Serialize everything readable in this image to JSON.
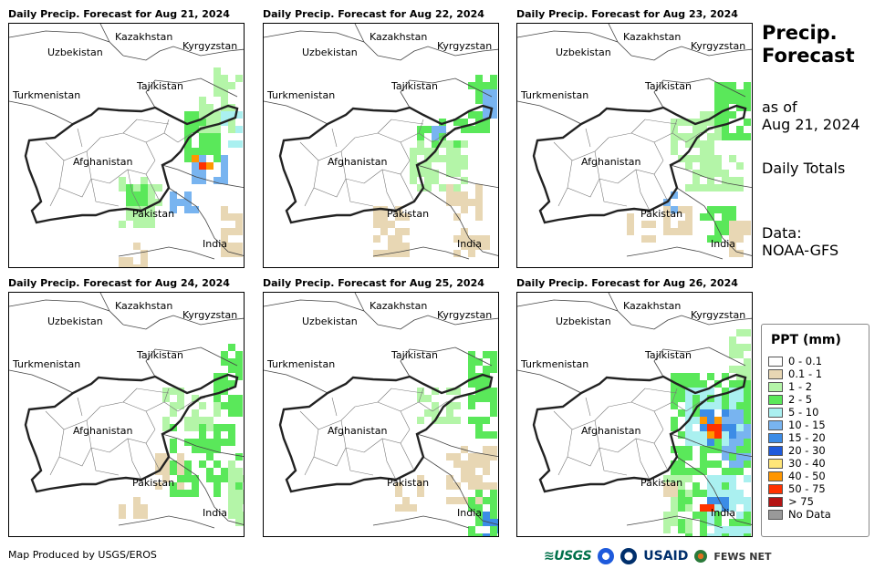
{
  "panels": [
    {
      "title": "Daily Precip. Forecast for Aug 21, 2024"
    },
    {
      "title": "Daily Precip. Forecast for Aug 22, 2024"
    },
    {
      "title": "Daily Precip. Forecast for Aug 23, 2024"
    },
    {
      "title": "Daily Precip. Forecast for Aug 24, 2024"
    },
    {
      "title": "Daily Precip. Forecast for Aug 25, 2024"
    },
    {
      "title": "Daily Precip. Forecast for Aug 26, 2024"
    }
  ],
  "countries": {
    "kazakhstan": "Kazakhstan",
    "kyrgyzstan": "Kyrgyzstan",
    "uzbekistan": "Uzbekistan",
    "tajikistan": "Tajikistan",
    "turkmenistan": "Turkmenistan",
    "afghanistan": "Afghanistan",
    "pakistan": "Pakistan",
    "india": "India"
  },
  "side": {
    "title_line1": "Precip.",
    "title_line2": "Forecast",
    "asof_line1": "as of",
    "asof_line2": "Aug 21, 2024",
    "totals": "Daily Totals",
    "data_line1": "Data:",
    "data_line2": "NOAA-GFS"
  },
  "legend": {
    "title": "PPT (mm)",
    "items": [
      {
        "label": "0 - 0.1",
        "color": "#ffffff"
      },
      {
        "label": "0.1 - 1",
        "color": "#e8d7b4"
      },
      {
        "label": "1 - 2",
        "color": "#b4f5a8"
      },
      {
        "label": "2 - 5",
        "color": "#5ae85a"
      },
      {
        "label": "5 - 10",
        "color": "#aaf0f0"
      },
      {
        "label": "10 - 15",
        "color": "#78b4f0"
      },
      {
        "label": "15 - 20",
        "color": "#3c8ce6"
      },
      {
        "label": "20 - 30",
        "color": "#1e5adc"
      },
      {
        "label": "30 - 40",
        "color": "#ffe678"
      },
      {
        "label": "40 - 50",
        "color": "#ff9600"
      },
      {
        "label": "50 - 75",
        "color": "#ff3200"
      },
      {
        "label": "> 75",
        "color": "#b41414"
      },
      {
        "label": "No Data",
        "color": "#999999"
      }
    ]
  },
  "credit": "Map Produced by USGS/EROS",
  "logos": {
    "usgs": "≋USGS",
    "usaid": "USAID",
    "fews": "FEWS NET"
  }
}
